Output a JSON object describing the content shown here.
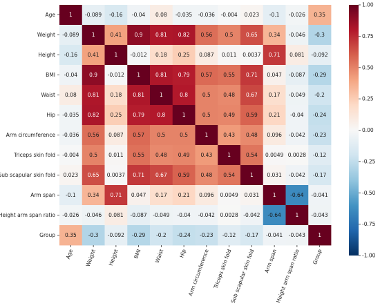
{
  "chart_data": {
    "type": "heatmap",
    "labels": [
      "Age",
      "Weight",
      "Height",
      "BMI",
      "Waist",
      "Hip",
      "Arm circumference",
      "Triceps skin fold",
      "Sub scapular skin fold",
      "Arm span",
      "Height arm span ratio",
      "Group"
    ],
    "matrix": [
      [
        "1",
        "-0.089",
        "-0.16",
        "-0.04",
        "0.08",
        "-0.035",
        "-0.036",
        "-0.004",
        "0.023",
        "-0.1",
        "-0.026",
        "0.35"
      ],
      [
        "-0.089",
        "1",
        "0.41",
        "0.9",
        "0.81",
        "0.82",
        "0.56",
        "0.5",
        "0.65",
        "0.34",
        "-0.046",
        "-0.3"
      ],
      [
        "-0.16",
        "0.41",
        "1",
        "-0.012",
        "0.18",
        "0.25",
        "0.087",
        "0.011",
        "0.0037",
        "0.71",
        "0.081",
        "-0.092"
      ],
      [
        "-0.04",
        "0.9",
        "-0.012",
        "1",
        "0.81",
        "0.79",
        "0.57",
        "0.55",
        "0.71",
        "0.047",
        "-0.087",
        "-0.29"
      ],
      [
        "0.08",
        "0.81",
        "0.18",
        "0.81",
        "1",
        "0.8",
        "0.5",
        "0.48",
        "0.67",
        "0.17",
        "-0.049",
        "-0.2"
      ],
      [
        "-0.035",
        "0.82",
        "0.25",
        "0.79",
        "0.8",
        "1",
        "0.5",
        "0.49",
        "0.59",
        "0.21",
        "-0.04",
        "-0.24"
      ],
      [
        "-0.036",
        "0.56",
        "0.087",
        "0.57",
        "0.5",
        "0.5",
        "1",
        "0.43",
        "0.48",
        "0.096",
        "-0.042",
        "-0.23"
      ],
      [
        "-0.004",
        "0.5",
        "0.011",
        "0.55",
        "0.48",
        "0.49",
        "0.43",
        "1",
        "0.54",
        "0.0049",
        "0.0028",
        "-0.12"
      ],
      [
        "0.023",
        "0.65",
        "0.0037",
        "0.71",
        "0.67",
        "0.59",
        "0.48",
        "0.54",
        "1",
        "0.031",
        "-0.042",
        "-0.17"
      ],
      [
        "-0.1",
        "0.34",
        "0.71",
        "0.047",
        "0.17",
        "0.21",
        "0.096",
        "0.0049",
        "0.031",
        "1",
        "-0.64",
        "-0.041"
      ],
      [
        "-0.026",
        "-0.046",
        "0.081",
        "-0.087",
        "-0.049",
        "-0.04",
        "-0.042",
        "0.0028",
        "-0.042",
        "-0.64",
        "1",
        "-0.043"
      ],
      [
        "0.35",
        "-0.3",
        "-0.092",
        "-0.29",
        "-0.2",
        "-0.24",
        "-0.23",
        "-0.12",
        "-0.17",
        "-0.041",
        "-0.043",
        "1"
      ]
    ],
    "colorbar": {
      "range": [
        -1.0,
        1.0
      ],
      "ticks": [
        "1.00",
        "0.75",
        "0.50",
        "0.25",
        "0.00",
        "-0.25",
        "-0.50",
        "-0.75",
        "-1.00"
      ],
      "colormap": "RdBu_r",
      "colors": [
        "#053061",
        "#2166ac",
        "#4393c3",
        "#92c5de",
        "#d1e5f0",
        "#f7f7f7",
        "#fddbc7",
        "#f4a582",
        "#d6604d",
        "#b2182b",
        "#67001f"
      ]
    },
    "title": "",
    "xlabel": "",
    "ylabel": ""
  }
}
